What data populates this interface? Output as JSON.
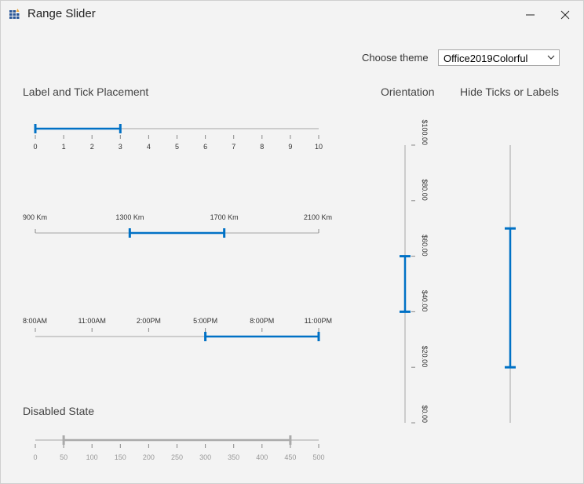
{
  "window": {
    "title": "Range Slider"
  },
  "theme": {
    "label": "Choose theme",
    "value": "Office2019Colorful"
  },
  "sections": {
    "label_tick": "Label and Tick Placement",
    "orientation": "Orientation",
    "hide": "Hide Ticks or Labels",
    "disabled": "Disabled State"
  },
  "colors": {
    "accent": "#0071c5",
    "track": "#cccccc",
    "disabled": "#aaaaaa"
  },
  "sliders": {
    "numeric": {
      "min": 0,
      "max": 10,
      "low": 0,
      "high": 3,
      "ticks": [
        "0",
        "1",
        "2",
        "3",
        "4",
        "5",
        "6",
        "7",
        "8",
        "9",
        "10"
      ]
    },
    "distance": {
      "min": 900,
      "max": 2100,
      "low": 1300,
      "high": 1700,
      "ticks": [
        "900 Km",
        "1300 Km",
        "1700 Km",
        "2100 Km"
      ]
    },
    "time": {
      "min_hours": 8,
      "max_hours": 23,
      "low_hours": 17,
      "high_hours": 23,
      "ticks": [
        "8:00AM",
        "11:00AM",
        "2:00PM",
        "5:00PM",
        "8:00PM",
        "11:00PM"
      ]
    },
    "disabled": {
      "min": 0,
      "max": 500,
      "low": 50,
      "high": 450,
      "ticks": [
        "0",
        "50",
        "100",
        "150",
        "200",
        "250",
        "300",
        "350",
        "400",
        "450",
        "500"
      ]
    },
    "vertical": {
      "min": 0,
      "max": 100,
      "low": 40,
      "high": 60,
      "ticks": [
        "$0.00",
        "$20.00",
        "$40.00",
        "$60.00",
        "$80.00",
        "$100.00"
      ]
    },
    "hidden": {
      "min": 0,
      "max": 100,
      "low": 20,
      "high": 70
    }
  }
}
